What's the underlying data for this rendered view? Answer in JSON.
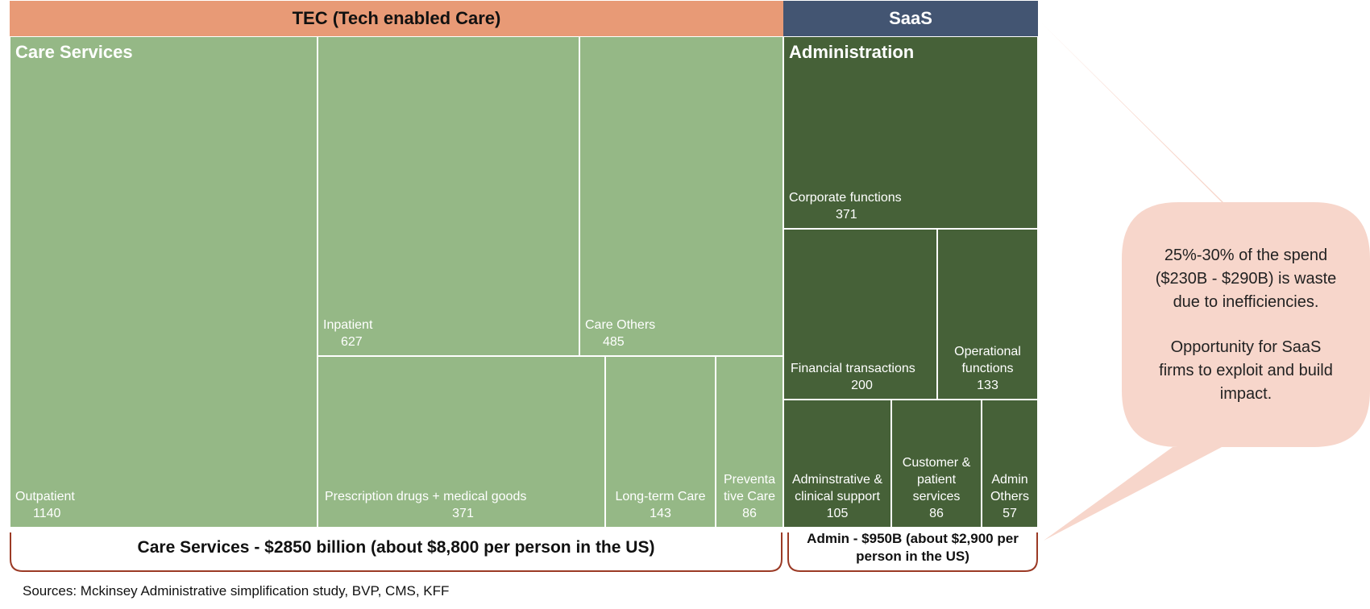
{
  "colors": {
    "tec_header": "#e89a76",
    "saas_header": "#435572",
    "care_green": "#95b886",
    "admin_green": "#466138",
    "callout": "#f7d6cb",
    "brace": "#9b3a25"
  },
  "headers": {
    "tec": "TEC (Tech enabled Care)",
    "saas": "SaaS"
  },
  "groups": {
    "care": "Care Services",
    "admin": "Administration"
  },
  "braces": {
    "care": "Care Services - $2850 billion (about $8,800 per person in the US)",
    "admin_line1": "Admin - $950B (about $2,900 per",
    "admin_line2": "person in the US)"
  },
  "callout": {
    "line1": "25%-30% of the spend",
    "line2": "($230B - $290B) is waste",
    "line3": "due to inefficiencies.",
    "line4": "Opportunity for SaaS",
    "line5": "firms to exploit and build",
    "line6": "impact."
  },
  "sources": "Sources: Mckinsey Administrative simplification study, BVP, CMS, KFF",
  "chart_data": {
    "type": "treemap",
    "groups": [
      {
        "name": "Care Services",
        "category": "TEC (Tech enabled Care)",
        "items": [
          {
            "name": "Outpatient",
            "value": 1140
          },
          {
            "name": "Inpatient",
            "value": 627
          },
          {
            "name": "Care Others",
            "value": 485
          },
          {
            "name": "Prescription drugs + medical goods",
            "value": 371
          },
          {
            "name": "Long-term Care",
            "value": 143
          },
          {
            "name": "Preventative Care",
            "value": 86
          }
        ]
      },
      {
        "name": "Administration",
        "category": "SaaS",
        "items": [
          {
            "name": "Corporate functions",
            "value": 371
          },
          {
            "name": "Financial transactions",
            "value": 200
          },
          {
            "name": "Operational functions",
            "value": 133
          },
          {
            "name": "Adminstrative & clinical support",
            "value": 105
          },
          {
            "name": "Customer & patient services",
            "value": 86
          },
          {
            "name": "Admin Others",
            "value": 57
          }
        ]
      }
    ],
    "labels": {
      "outpatient": {
        "l1": "Outpatient",
        "v": "1140"
      },
      "inpatient": {
        "l1": "Inpatient",
        "v": "627"
      },
      "care_others": {
        "l1": "Care Others",
        "v": "485"
      },
      "rx": {
        "l1": "Prescription drugs + medical goods",
        "v": "371"
      },
      "ltc": {
        "l1": "Long-term Care",
        "v": "143"
      },
      "prev": {
        "l1": "Preventa",
        "l2": "tive Care",
        "v": "86"
      },
      "corp": {
        "l1": "Corporate functions",
        "v": "371"
      },
      "fin": {
        "l1": "Financial transactions",
        "v": "200"
      },
      "ops": {
        "l1": "Operational",
        "l2": "functions",
        "v": "133"
      },
      "adm_clin": {
        "l1": "Adminstrative &",
        "l2": "clinical support",
        "v": "105"
      },
      "cust": {
        "l1": "Customer &",
        "l2": "patient",
        "l3": "services",
        "v": "86"
      },
      "admin_oth": {
        "l1": "Admin",
        "l2": "Others",
        "v": "57"
      }
    }
  }
}
